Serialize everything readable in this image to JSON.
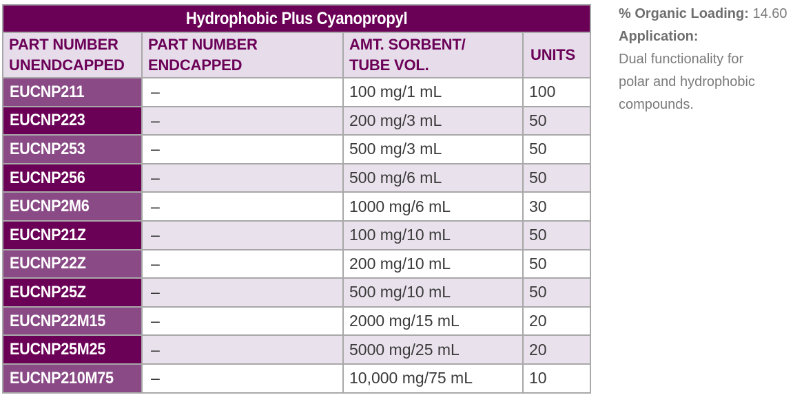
{
  "table": {
    "title": "Hydrophobic Plus Cyanopropyl",
    "headers": {
      "col1_line1": "PART NUMBER",
      "col1_line2": "UNENDCAPPED",
      "col2_line1": "PART NUMBER",
      "col2_line2": "ENDCAPPED",
      "col3_line1": "AMT. SORBENT/",
      "col3_line2": "TUBE VOL.",
      "col4": "UNITS"
    },
    "rows": [
      {
        "part": "EUCNP211",
        "endcapped": "–",
        "amount": "100 mg/1 mL",
        "units": "100"
      },
      {
        "part": "EUCNP223",
        "endcapped": "–",
        "amount": "200 mg/3 mL",
        "units": "50"
      },
      {
        "part": "EUCNP253",
        "endcapped": "–",
        "amount": "500 mg/3 mL",
        "units": "50"
      },
      {
        "part": "EUCNP256",
        "endcapped": "–",
        "amount": "500 mg/6 mL",
        "units": "50"
      },
      {
        "part": "EUCNP2M6",
        "endcapped": "–",
        "amount": "1000 mg/6 mL",
        "units": "30"
      },
      {
        "part": "EUCNP21Z",
        "endcapped": "–",
        "amount": "100 mg/10 mL",
        "units": "50"
      },
      {
        "part": "EUCNP22Z",
        "endcapped": "–",
        "amount": "200 mg/10 mL",
        "units": "50"
      },
      {
        "part": "EUCNP25Z",
        "endcapped": "–",
        "amount": "500 mg/10 mL",
        "units": "50"
      },
      {
        "part": "EUCNP22M15",
        "endcapped": "–",
        "amount": "2000 mg/15 mL",
        "units": "20"
      },
      {
        "part": "EUCNP25M25",
        "endcapped": "–",
        "amount": "5000 mg/25 mL",
        "units": "20"
      },
      {
        "part": "EUCNP210M75",
        "endcapped": "–",
        "amount": "10,000 mg/75 mL",
        "units": "10"
      }
    ]
  },
  "side": {
    "loading_label": "% Organic Loading:",
    "loading_value": "14.60",
    "application_label": "Application:",
    "application_lines": [
      "Dual functionality for",
      "polar and hydrophobic",
      "compounds."
    ]
  },
  "colors": {
    "title_bg": "#6b0057",
    "header_bg": "#e6dcea",
    "part_dark": "#6b0057",
    "part_light": "#8a4a86",
    "row_alt": "#e9e1ec"
  }
}
